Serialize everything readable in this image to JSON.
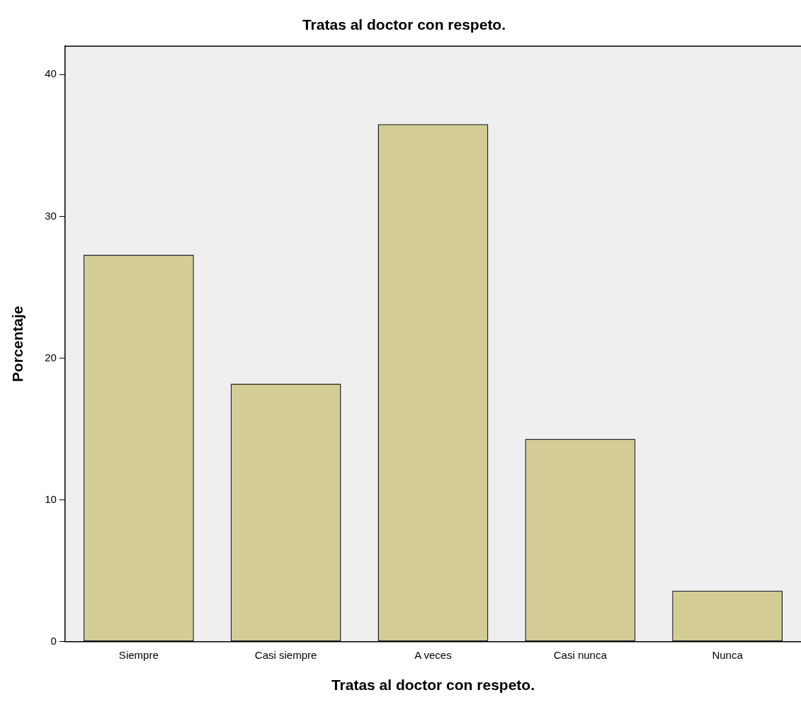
{
  "chart_data": {
    "type": "bar",
    "title": "Tratas al doctor con respeto.",
    "xlabel": "Tratas al doctor con respeto.",
    "ylabel": "Porcentaje",
    "categories": [
      "Siempre",
      "Casi siempre",
      "A veces",
      "Casi nunca",
      "Nunca"
    ],
    "values": [
      27.3,
      18.2,
      36.5,
      14.3,
      3.6
    ],
    "color": "#d3cd95",
    "ylim": [
      0,
      42
    ],
    "yticks": [
      0,
      10,
      20,
      30,
      40
    ],
    "grid": false,
    "legend": false
  }
}
